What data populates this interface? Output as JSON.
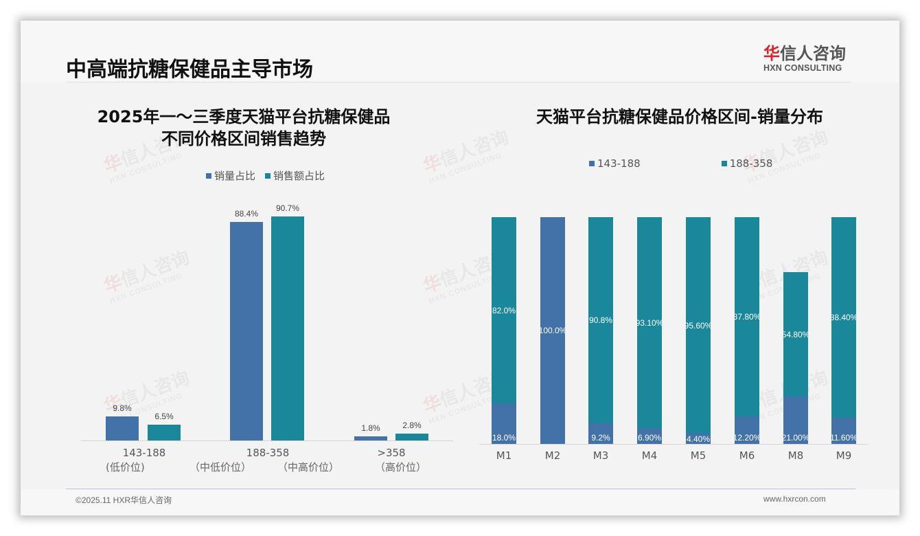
{
  "header": {
    "title": "中高端抗糖保健品主导市场",
    "logo_cn_red": "华",
    "logo_cn_rest": "信人咨询",
    "logo_en": "HXN CONSULTING"
  },
  "watermark": {
    "cn_red": "华",
    "cn_rest": "信人咨询",
    "en": "HXN CONSULTING"
  },
  "colors": {
    "series_blue": "#4272a8",
    "series_teal": "#1b879b"
  },
  "left_chart": {
    "title_line1": "2025年一～三季度天猫平台抗糖保健品",
    "title_line2": "不同价格区间销售趋势",
    "legend": [
      "销量占比",
      "销售额占比"
    ],
    "categories": [
      {
        "range": "143-188",
        "sub": "(低价位)",
        "sales_volume_label": "9.8%",
        "sales_amount_label": "6.5%"
      },
      {
        "range": "188-358",
        "sub": "（中低价位）",
        "sub2": "（中高价位）",
        "sales_volume_label": "88.4%",
        "sales_amount_label": "90.7%"
      },
      {
        "range": ">358",
        "sub": "（高价位）",
        "sales_volume_label": "1.8%",
        "sales_amount_label": "2.8%"
      }
    ]
  },
  "right_chart": {
    "title": "天猫平台抗糖保健品价格区间-销量分布",
    "legend": [
      "143-188",
      "188-358"
    ],
    "months": [
      {
        "m": "M1",
        "low_label": "18.0%",
        "high_label": "82.0%"
      },
      {
        "m": "M2",
        "low_label": "100.0%",
        "high_label": ""
      },
      {
        "m": "M3",
        "low_label": "9.2%",
        "high_label": "90.8%"
      },
      {
        "m": "M4",
        "low_label": "6.90%",
        "high_label": "93.10%"
      },
      {
        "m": "M5",
        "low_label": "4.40%",
        "high_label": "95.60%"
      },
      {
        "m": "M6",
        "low_label": "12.20%",
        "high_label": "87.80%"
      },
      {
        "m": "M8",
        "low_label": "21.00%",
        "high_label": "54.80%"
      },
      {
        "m": "M9",
        "low_label": "11.60%",
        "high_label": "88.40%"
      }
    ]
  },
  "chart_data": [
    {
      "type": "bar",
      "title": "2025年一～三季度天猫平台抗糖保健品不同价格区间销售趋势",
      "categories": [
        "143-188 (低价位)",
        "188-358 (中低价位/中高价位)",
        ">358 (高价位)"
      ],
      "series": [
        {
          "name": "销量占比",
          "values": [
            9.8,
            88.4,
            1.8
          ]
        },
        {
          "name": "销售额占比",
          "values": [
            6.5,
            90.7,
            2.8
          ]
        }
      ],
      "xlabel": "",
      "ylabel": "",
      "ylim": [
        0,
        100
      ],
      "grid": false,
      "legend_position": "top"
    },
    {
      "type": "bar",
      "stacked": true,
      "title": "天猫平台抗糖保健品价格区间-销量分布",
      "categories": [
        "M1",
        "M2",
        "M3",
        "M4",
        "M5",
        "M6",
        "M8",
        "M9"
      ],
      "series": [
        {
          "name": "143-188",
          "values": [
            18.0,
            100.0,
            9.2,
            6.9,
            4.4,
            12.2,
            21.0,
            11.6
          ]
        },
        {
          "name": "188-358",
          "values": [
            82.0,
            0,
            90.8,
            93.1,
            95.6,
            87.8,
            54.8,
            88.4
          ]
        }
      ],
      "xlabel": "",
      "ylabel": "",
      "ylim": [
        0,
        100
      ],
      "grid": false,
      "legend_position": "top"
    }
  ],
  "footer": {
    "left": "©2025.11 HXR华信人咨询",
    "right": "www.hxrcon.com"
  }
}
